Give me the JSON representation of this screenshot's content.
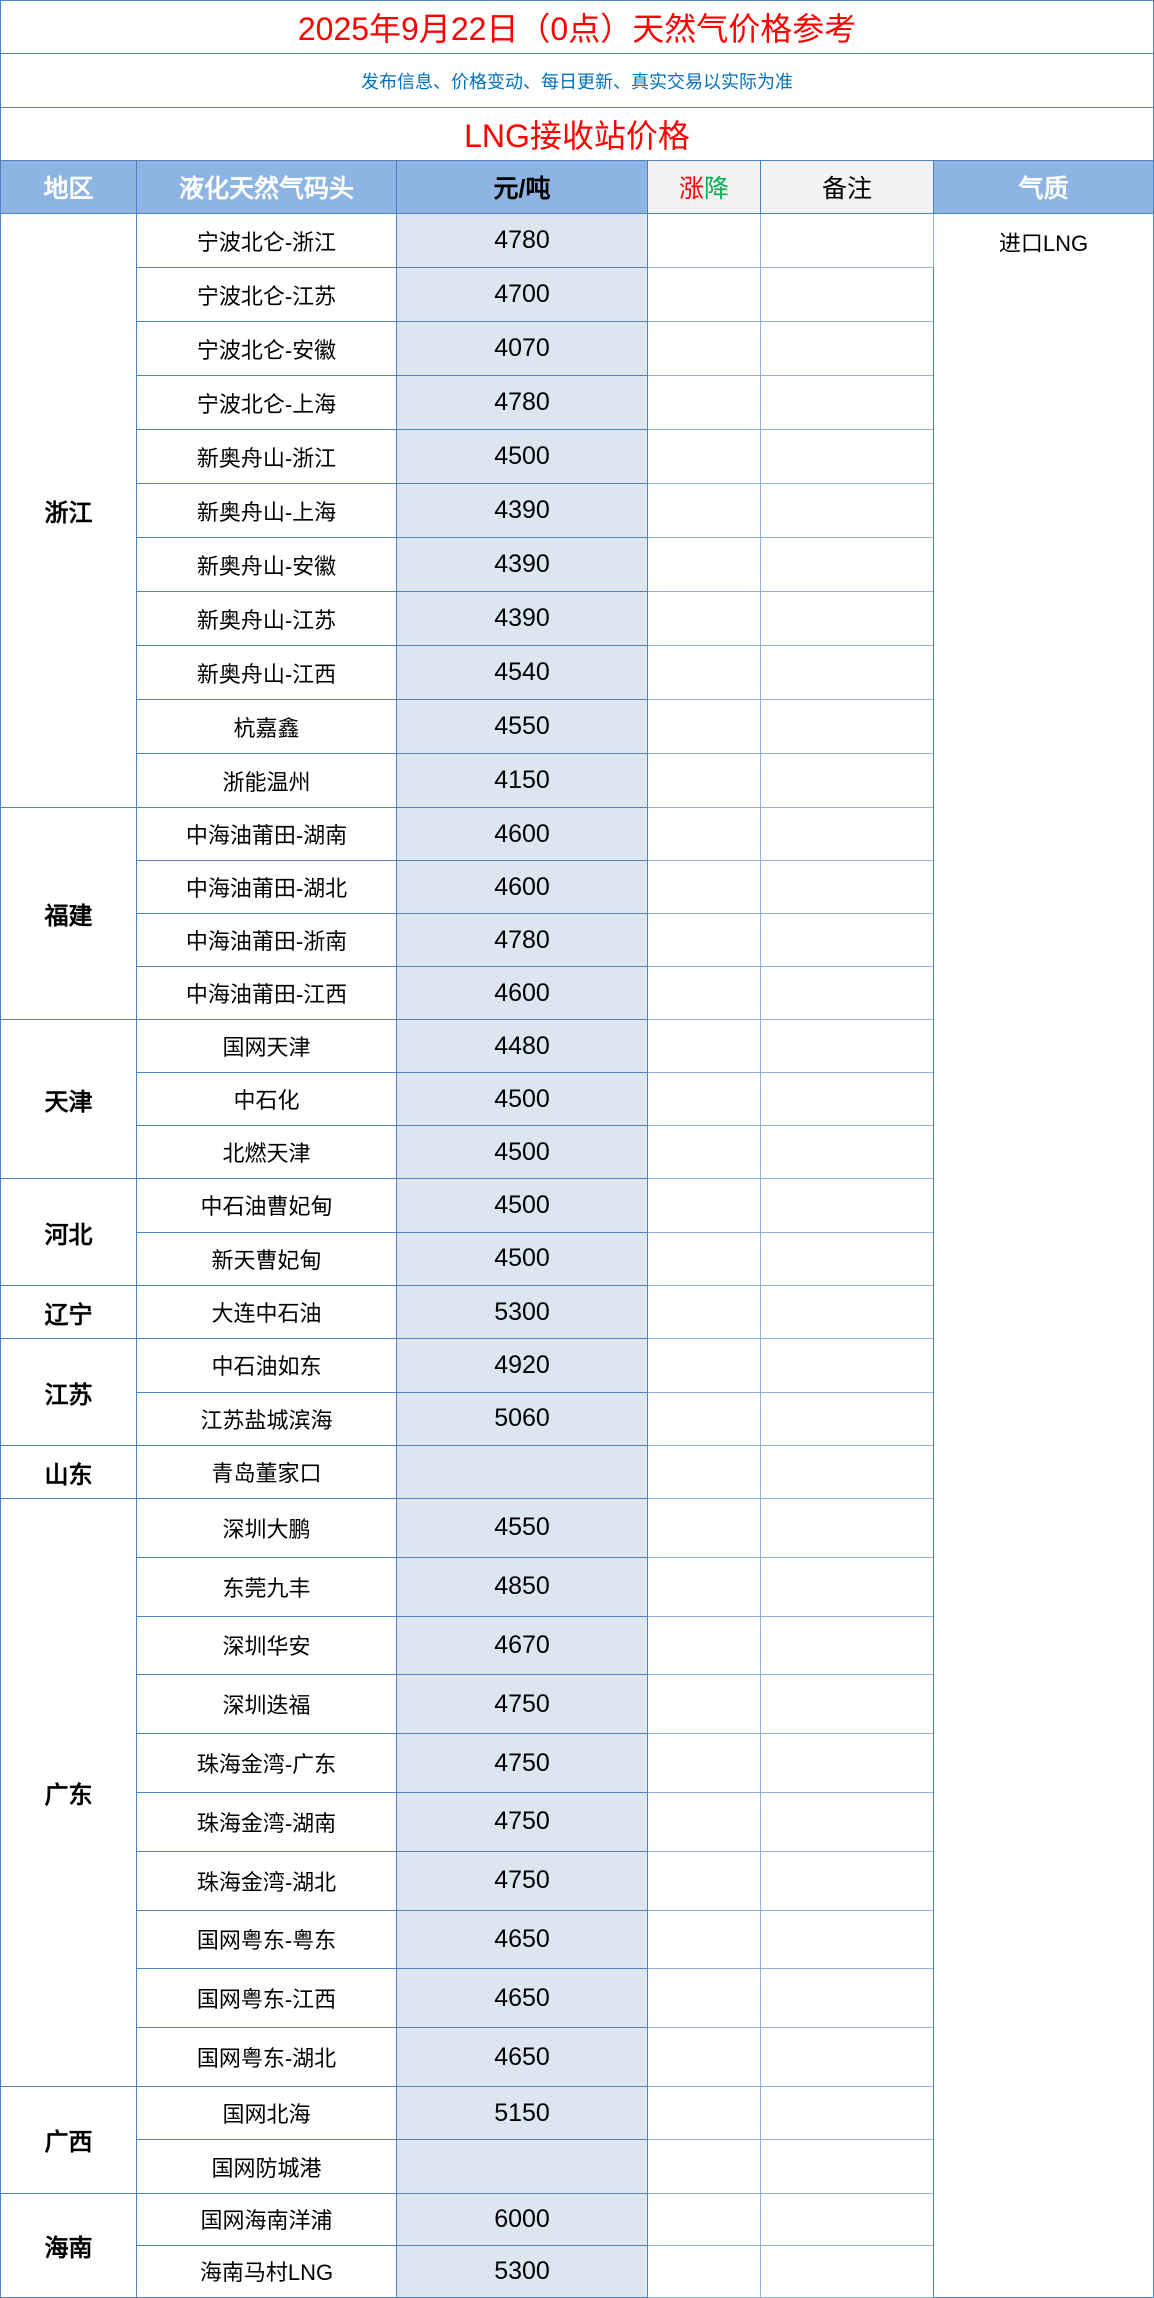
{
  "title": "2025年9月22日（0点）天然气价格参考",
  "subtitle": "发布信息、价格变动、每日更新、真实交易以实际为准",
  "section_title": "LNG接收站价格",
  "headers": {
    "region": "地区",
    "terminal": "液化天然气码头",
    "price": "元/吨",
    "change_up": "涨",
    "change_down": "降",
    "note": "备注",
    "quality": "气质"
  },
  "quality_value": "进口LNG",
  "colors": {
    "title": "#ff0000",
    "subtitle": "#0070c0",
    "header_bg": "#8db4e2",
    "price_bg": "#dce6f1",
    "up": "#ff0000",
    "down": "#00b050",
    "border": "#4f81bd"
  },
  "regions": [
    {
      "name": "浙江",
      "stations": [
        {
          "name": "宁波北仑-浙江",
          "price": "4780"
        },
        {
          "name": "宁波北仑-江苏",
          "price": "4700"
        },
        {
          "name": "宁波北仑-安徽",
          "price": "4070"
        },
        {
          "name": "宁波北仑-上海",
          "price": "4780"
        },
        {
          "name": "新奥舟山-浙江",
          "price": "4500"
        },
        {
          "name": "新奥舟山-上海",
          "price": "4390"
        },
        {
          "name": "新奥舟山-安徽",
          "price": "4390"
        },
        {
          "name": "新奥舟山-江苏",
          "price": "4390"
        },
        {
          "name": "新奥舟山-江西",
          "price": "4540"
        },
        {
          "name": "杭嘉鑫",
          "price": "4550"
        },
        {
          "name": "浙能温州",
          "price": "4150"
        }
      ]
    },
    {
      "name": "福建",
      "stations": [
        {
          "name": "中海油莆田-湖南",
          "price": "4600"
        },
        {
          "name": "中海油莆田-湖北",
          "price": "4600"
        },
        {
          "name": "中海油莆田-浙南",
          "price": "4780"
        },
        {
          "name": "中海油莆田-江西",
          "price": "4600"
        }
      ]
    },
    {
      "name": "天津",
      "stations": [
        {
          "name": "国网天津",
          "price": "4480"
        },
        {
          "name": "中石化",
          "price": "4500"
        },
        {
          "name": "北燃天津",
          "price": "4500"
        }
      ]
    },
    {
      "name": "河北",
      "stations": [
        {
          "name": "中石油曹妃甸",
          "price": "4500"
        },
        {
          "name": "新天曹妃甸",
          "price": "4500"
        }
      ]
    },
    {
      "name": "辽宁",
      "stations": [
        {
          "name": "大连中石油",
          "price": "5300"
        }
      ]
    },
    {
      "name": "江苏",
      "stations": [
        {
          "name": "中石油如东",
          "price": "4920"
        },
        {
          "name": "江苏盐城滨海",
          "price": "5060"
        }
      ]
    },
    {
      "name": "山东",
      "stations": [
        {
          "name": "青岛董家口",
          "price": ""
        }
      ]
    },
    {
      "name": "广东",
      "stations": [
        {
          "name": "深圳大鹏",
          "price": "4550"
        },
        {
          "name": "东莞九丰",
          "price": "4850"
        },
        {
          "name": "深圳华安",
          "price": "4670"
        },
        {
          "name": "深圳迭福",
          "price": "4750"
        },
        {
          "name": "珠海金湾-广东",
          "price": "4750"
        },
        {
          "name": "珠海金湾-湖南",
          "price": "4750"
        },
        {
          "name": "珠海金湾-湖北",
          "price": "4750"
        },
        {
          "name": "国网粤东-粤东",
          "price": "4650"
        },
        {
          "name": "国网粤东-江西",
          "price": "4650"
        },
        {
          "name": "国网粤东-湖北",
          "price": "4650"
        }
      ]
    },
    {
      "name": "广西",
      "stations": [
        {
          "name": "国网北海",
          "price": "5150"
        },
        {
          "name": "国网防城港",
          "price": ""
        }
      ]
    },
    {
      "name": "海南",
      "stations": [
        {
          "name": "国网海南洋浦",
          "price": "6000"
        },
        {
          "name": "海南马村LNG",
          "price": "5300"
        }
      ]
    }
  ]
}
